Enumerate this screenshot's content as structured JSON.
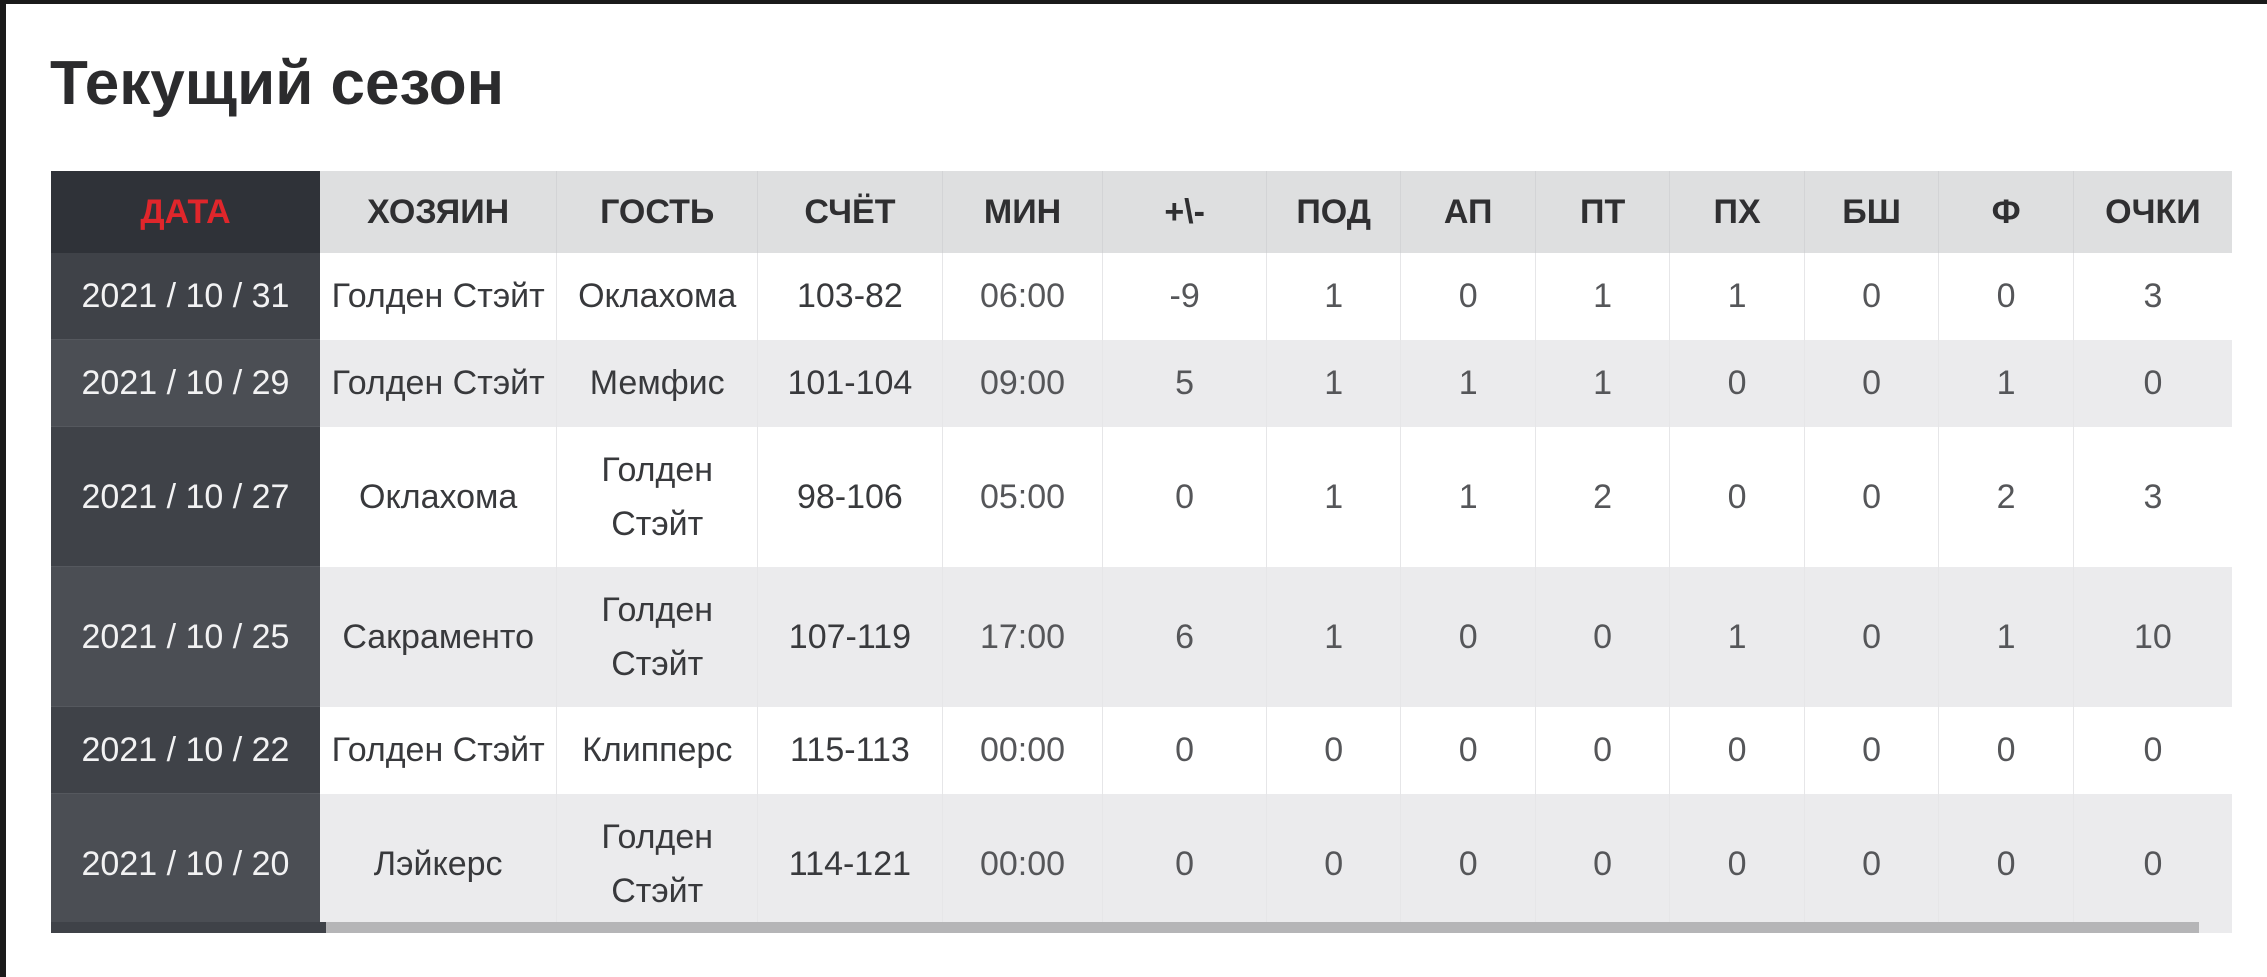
{
  "page": {
    "title": "Текущий сезон"
  },
  "table": {
    "headers": [
      "ДАТА",
      "ХОЗЯИН",
      "ГОСТЬ",
      "СЧЁТ",
      "МИН",
      "+\\-",
      "ПОД",
      "АП",
      "ПТ",
      "ПХ",
      "БШ",
      "Ф",
      "ОЧКИ"
    ],
    "rows": [
      {
        "date": "2021 / 10 / 31",
        "home": "Голден Стэйт",
        "guest": "Оклахома",
        "score": "103-82",
        "min": "06:00",
        "pm": "-9",
        "pod": "1",
        "ap": "0",
        "pt": "1",
        "ph": "1",
        "bsh": "0",
        "f": "0",
        "pts": "3"
      },
      {
        "date": "2021 / 10 / 29",
        "home": "Голден Стэйт",
        "guest": "Мемфис",
        "score": "101-104",
        "min": "09:00",
        "pm": "5",
        "pod": "1",
        "ap": "1",
        "pt": "1",
        "ph": "0",
        "bsh": "0",
        "f": "1",
        "pts": "0"
      },
      {
        "date": "2021 / 10 / 27",
        "home": "Оклахома",
        "guest": "Голден Стэйт",
        "score": "98-106",
        "min": "05:00",
        "pm": "0",
        "pod": "1",
        "ap": "1",
        "pt": "2",
        "ph": "0",
        "bsh": "0",
        "f": "2",
        "pts": "3"
      },
      {
        "date": "2021 / 10 / 25",
        "home": "Сакраменто",
        "guest": "Голден Стэйт",
        "score": "107-119",
        "min": "17:00",
        "pm": "6",
        "pod": "1",
        "ap": "0",
        "pt": "0",
        "ph": "1",
        "bsh": "0",
        "f": "1",
        "pts": "10"
      },
      {
        "date": "2021 / 10 / 22",
        "home": "Голден Стэйт",
        "guest": "Клипперс",
        "score": "115-113",
        "min": "00:00",
        "pm": "0",
        "pod": "0",
        "ap": "0",
        "pt": "0",
        "ph": "0",
        "bsh": "0",
        "f": "0",
        "pts": "0"
      },
      {
        "date": "2021 / 10 / 20",
        "home": "Лэйкерс",
        "guest": "Голден Стэйт",
        "score": "114-121",
        "min": "00:00",
        "pm": "0",
        "pod": "0",
        "ap": "0",
        "pt": "0",
        "ph": "0",
        "bsh": "0",
        "f": "0",
        "pts": "0"
      }
    ]
  },
  "colors": {
    "accent": "#e0262b",
    "date_column": "#3f4248",
    "header_bg": "#dedfe0",
    "row_alt_bg": "#ebebed"
  }
}
